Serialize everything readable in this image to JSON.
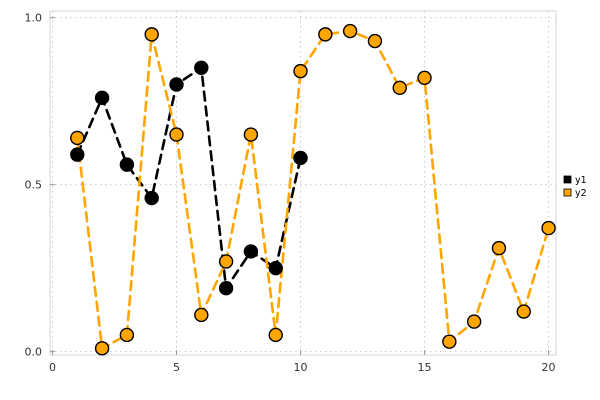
{
  "chart_data": {
    "type": "line",
    "title": "",
    "xlabel": "",
    "ylabel": "",
    "xlim": [
      0,
      20.3
    ],
    "ylim": [
      0,
      1.0
    ],
    "xticks": [
      0,
      5,
      10,
      15,
      20
    ],
    "xtick_labels": [
      "0",
      "5",
      "10",
      "15",
      "20"
    ],
    "yticks": [
      0.0,
      0.5,
      1.0
    ],
    "ytick_labels": [
      "0.0",
      "0.5",
      "1.0"
    ],
    "grid": true,
    "grid_style": "dotted",
    "legend_position": "outer-right",
    "line_style": "dashed",
    "series": [
      {
        "name": "y1",
        "color": "#000000",
        "marker": "circle",
        "marker_edge": "#000000",
        "x": [
          1,
          2,
          3,
          4,
          5,
          6,
          7,
          8,
          9,
          10
        ],
        "values": [
          0.59,
          0.76,
          0.56,
          0.46,
          0.8,
          0.85,
          0.19,
          0.3,
          0.25,
          0.58
        ]
      },
      {
        "name": "y2",
        "color": "#FFA500",
        "marker": "circle",
        "marker_edge": "#000000",
        "x": [
          1,
          2,
          3,
          4,
          5,
          6,
          7,
          8,
          9,
          10,
          11,
          12,
          13,
          14,
          15,
          16,
          17,
          18,
          19,
          20
        ],
        "values": [
          0.64,
          0.01,
          0.05,
          0.95,
          0.65,
          0.11,
          0.27,
          0.65,
          0.05,
          0.84,
          0.95,
          0.96,
          0.93,
          0.79,
          0.82,
          0.03,
          0.09,
          0.31,
          0.12,
          0.37
        ]
      }
    ]
  }
}
